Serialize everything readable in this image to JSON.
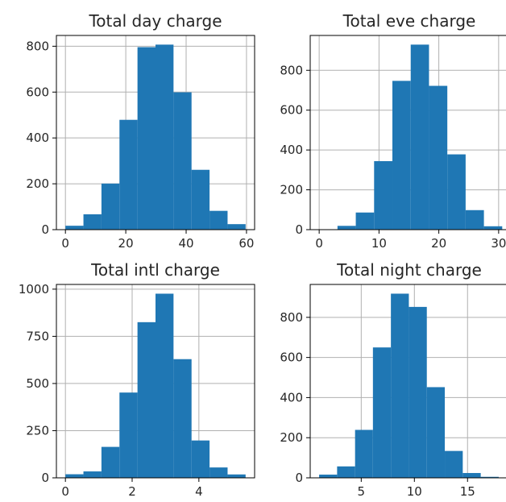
{
  "chart_data": [
    {
      "type": "bar",
      "title": "Total day charge",
      "bin_edges": [
        0.0,
        5.97,
        11.94,
        17.91,
        23.88,
        29.85,
        35.82,
        41.79,
        47.76,
        53.73,
        59.7
      ],
      "values": [
        17,
        67,
        201,
        479,
        796,
        807,
        599,
        261,
        82,
        24
      ],
      "xlim": [
        -2.99,
        62.69
      ],
      "ylim": [
        0,
        847
      ],
      "xticks": [
        0,
        20,
        40,
        60
      ],
      "yticks": [
        0,
        200,
        400,
        600,
        800
      ],
      "color": "#1f77b4",
      "grid": true
    },
    {
      "type": "bar",
      "title": "Total eve charge",
      "bin_edges": [
        0.0,
        3.06,
        6.12,
        9.18,
        12.24,
        15.3,
        18.36,
        21.42,
        24.48,
        27.54,
        30.6
      ],
      "values": [
        2,
        19,
        86,
        344,
        747,
        929,
        722,
        378,
        98,
        17
      ],
      "xlim": [
        -1.5,
        31.5
      ],
      "ylim": [
        0,
        975
      ],
      "xticks": [
        0,
        10,
        20,
        30
      ],
      "yticks": [
        0,
        200,
        400,
        600,
        800
      ],
      "color": "#1f77b4",
      "grid": true
    },
    {
      "type": "bar",
      "title": "Total intl charge",
      "bin_edges": [
        0.0,
        0.54,
        1.08,
        1.62,
        2.16,
        2.7,
        3.24,
        3.78,
        4.32,
        4.86,
        5.4
      ],
      "values": [
        19,
        34,
        164,
        452,
        825,
        976,
        629,
        198,
        55,
        18
      ],
      "xlim": [
        -0.27,
        5.67
      ],
      "ylim": [
        0,
        1025
      ],
      "xticks": [
        0,
        2,
        4
      ],
      "yticks": [
        0,
        250,
        500,
        750,
        1000
      ],
      "color": "#1f77b4",
      "grid": true
    },
    {
      "type": "bar",
      "title": "Total night charge",
      "bin_edges": [
        1.04,
        2.73,
        4.42,
        6.1,
        7.79,
        9.48,
        11.17,
        12.86,
        14.55,
        16.24,
        17.93
      ],
      "values": [
        16,
        57,
        239,
        650,
        918,
        852,
        452,
        134,
        24,
        5
      ],
      "xlim": [
        0.2,
        18.77
      ],
      "ylim": [
        0,
        964
      ],
      "xticks": [
        5,
        10,
        15
      ],
      "yticks": [
        0,
        200,
        400,
        600,
        800
      ],
      "color": "#1f77b4",
      "grid": true
    }
  ]
}
